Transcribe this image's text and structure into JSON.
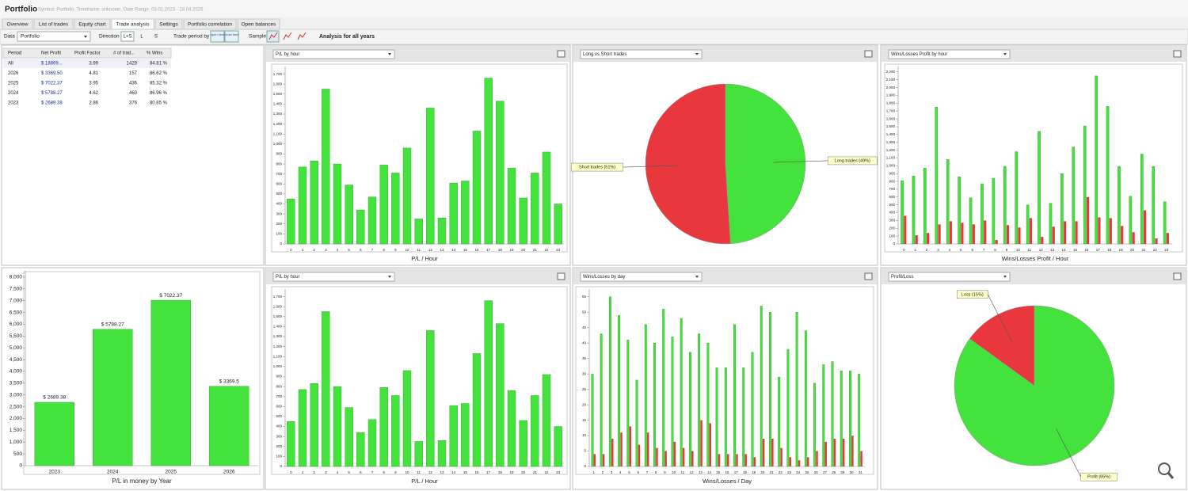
{
  "header": {
    "title": "Portfolio",
    "subtitle": "Symbol: Portfolio, Timeframe: unknown, Date Range: 03.01.2023 - 18.04.2026"
  },
  "tabs": [
    "Overview",
    "List of trades",
    "Equity chart",
    "Trade analysis",
    "Settings",
    "Portfolio correlation",
    "Open balances"
  ],
  "active_tab": 3,
  "toolbar": {
    "data_label": "Data",
    "data_value": "Portfolio",
    "direction_label": "Direction",
    "directions": [
      "L+S",
      "L",
      "S"
    ],
    "period_label": "Trade period by",
    "period_options": [
      "open time",
      "close time"
    ],
    "sample_label": "Sample",
    "analysis": "Analysis for all years"
  },
  "table": {
    "columns": [
      "Period",
      "Net Profit",
      "Profit Factor",
      "# of trad...",
      "% Wins"
    ],
    "rows": [
      [
        "All",
        "$ 18869...",
        "3.99",
        "1429",
        "84.81 %"
      ],
      [
        "2026",
        "$ 3369.50",
        "4.81",
        "157",
        "86.62 %"
      ],
      [
        "2025",
        "$ 7022.37",
        "3.95",
        "436",
        "85.32 %"
      ],
      [
        "2024",
        "$ 5788.27",
        "4.62",
        "460",
        "86.96 %"
      ],
      [
        "2023",
        "$ 2689.38",
        "2.86",
        "376",
        "80.85 %"
      ]
    ]
  },
  "chart_data": [
    {
      "type": "bar",
      "title": "P/L by hour",
      "x_label": "P/L / Hour",
      "color": "#44e23c",
      "categories": [
        "0",
        "1",
        "2",
        "3",
        "4",
        "5",
        "6",
        "7",
        "8",
        "9",
        "10",
        "11",
        "12",
        "13",
        "14",
        "15",
        "16",
        "17",
        "18",
        "19",
        "20",
        "21",
        "22",
        "23"
      ],
      "values": [
        450,
        770,
        830,
        1550,
        800,
        590,
        340,
        470,
        790,
        710,
        960,
        250,
        1360,
        260,
        610,
        630,
        1130,
        1660,
        1430,
        760,
        460,
        710,
        920,
        400
      ],
      "ylim": [
        0,
        1760
      ],
      "yticks": [
        0,
        100,
        200,
        300,
        400,
        500,
        600,
        700,
        800,
        900,
        {
          "value": 1000,
          "label": "1,000"
        },
        {
          "value": 1100,
          "label": "1,100"
        },
        {
          "value": 1200,
          "label": "1,200"
        },
        {
          "value": 1300,
          "label": "1,300"
        },
        {
          "value": 1400,
          "label": "1,400"
        },
        {
          "value": 1500,
          "label": "1,500"
        },
        {
          "value": 1600,
          "label": "1,600"
        },
        {
          "value": 1700,
          "label": "1,700"
        }
      ]
    },
    {
      "type": "pie",
      "title": "Long vs Short trades",
      "values": [
        51,
        49
      ],
      "value_labels": [
        "Short trades (51%)",
        "Long trades (49%)"
      ],
      "colors": [
        "#e8373d",
        "#44e23c"
      ]
    },
    {
      "type": "bar",
      "title": "Wins/Losses Profit by hour",
      "x_label": "Wins/Losses Profit / Hour",
      "categories": [
        "0",
        "1",
        "2",
        "3",
        "4",
        "5",
        "6",
        "7",
        "8",
        "9",
        "10",
        "11",
        "12",
        "13",
        "14",
        "15",
        "16",
        "17",
        "18",
        "19",
        "20",
        "21",
        "22",
        "23"
      ],
      "series": [
        {
          "color": "#44e23c",
          "values": [
            810,
            870,
            970,
            1750,
            1080,
            860,
            590,
            770,
            840,
            990,
            1180,
            500,
            1440,
            520,
            900,
            1240,
            1510,
            2150,
            1760,
            990,
            610,
            1150,
            990,
            540
          ]
        },
        {
          "color": "#e8373d",
          "values": [
            360,
            110,
            140,
            250,
            290,
            270,
            250,
            300,
            50,
            240,
            210,
            330,
            90,
            220,
            290,
            290,
            600,
            340,
            330,
            230,
            150,
            430,
            70,
            140
          ]
        }
      ],
      "ylim": [
        0,
        2250
      ],
      "yticks": [
        0,
        100,
        200,
        300,
        400,
        500,
        600,
        700,
        800,
        900,
        {
          "value": 1000,
          "label": "1,000"
        },
        {
          "value": 1100,
          "label": "1,100"
        },
        {
          "value": 1200,
          "label": "1,200"
        },
        {
          "value": 1300,
          "label": "1,300"
        },
        {
          "value": 1400,
          "label": "1,400"
        },
        {
          "value": 1500,
          "label": "1,500"
        },
        {
          "value": 1600,
          "label": "1,600"
        },
        {
          "value": 1700,
          "label": "1,700"
        },
        {
          "value": 1800,
          "label": "1,800"
        },
        {
          "value": 1900,
          "label": "1,900"
        },
        {
          "value": 2000,
          "label": "2,000"
        },
        {
          "value": 2100,
          "label": "2,100"
        },
        {
          "value": 2200,
          "label": "2,200"
        }
      ]
    },
    {
      "type": "bar",
      "x_label": "P/L in money by Year",
      "color": "#44e23c",
      "categories": [
        "2023",
        "2024",
        "2025",
        "2026"
      ],
      "values": [
        2689.38,
        5788.27,
        7022.37,
        3369.5
      ],
      "value_labels": [
        "$ 2689.38",
        "$ 5788.27",
        "$ 7022.37",
        "$ 3369.5"
      ],
      "ylim": [
        0,
        8200
      ],
      "yticks": [
        0,
        500,
        {
          "value": 1000,
          "label": "1,000"
        },
        {
          "value": 1500,
          "label": "1,500"
        },
        {
          "value": 2000,
          "label": "2,000"
        },
        {
          "value": 2500,
          "label": "2,500"
        },
        {
          "value": 3000,
          "label": "3,000"
        },
        {
          "value": 3500,
          "label": "3,500"
        },
        {
          "value": 4000,
          "label": "4,000"
        },
        {
          "value": 4500,
          "label": "4,500"
        },
        {
          "value": 5000,
          "label": "5,000"
        },
        {
          "value": 5500,
          "label": "5,500"
        },
        {
          "value": 6000,
          "label": "6,000"
        },
        {
          "value": 6500,
          "label": "6,500"
        },
        {
          "value": 7000,
          "label": "7,000"
        },
        {
          "value": 7500,
          "label": "7,500"
        },
        {
          "value": 8000,
          "label": "8,000"
        }
      ]
    },
    {
      "type": "bar",
      "title": "P/L by hour",
      "x_label": "P/L / Hour",
      "color": "#44e23c",
      "categories": [
        "0",
        "1",
        "2",
        "3",
        "4",
        "5",
        "6",
        "7",
        "8",
        "9",
        "10",
        "11",
        "12",
        "13",
        "14",
        "15",
        "16",
        "17",
        "18",
        "19",
        "20",
        "21",
        "22",
        "23"
      ],
      "values": [
        450,
        770,
        830,
        1550,
        800,
        590,
        340,
        470,
        790,
        710,
        960,
        250,
        1360,
        260,
        610,
        630,
        1130,
        1660,
        1430,
        760,
        460,
        710,
        920,
        400
      ],
      "ylim": [
        0,
        1760
      ],
      "yticks": [
        0,
        100,
        200,
        300,
        400,
        500,
        600,
        700,
        800,
        900,
        {
          "value": 1000,
          "label": "1,000"
        },
        {
          "value": 1100,
          "label": "1,100"
        },
        {
          "value": 1200,
          "label": "1,200"
        },
        {
          "value": 1300,
          "label": "1,300"
        },
        {
          "value": 1400,
          "label": "1,400"
        },
        {
          "value": 1500,
          "label": "1,500"
        },
        {
          "value": 1600,
          "label": "1,600"
        },
        {
          "value": 1700,
          "label": "1,700"
        }
      ]
    },
    {
      "type": "bar",
      "title": "Wins/Losses by day",
      "x_label": "Wins/Losses / Day",
      "categories": [
        "1",
        "2",
        "3",
        "4",
        "5",
        "6",
        "7",
        "8",
        "9",
        "10",
        "11",
        "12",
        "13",
        "14",
        "15",
        "16",
        "17",
        "18",
        "19",
        "20",
        "21",
        "22",
        "23",
        "24",
        "25",
        "26",
        "27",
        "28",
        "29",
        "30",
        "31"
      ],
      "series": [
        {
          "color": "#44e23c",
          "values": [
            30,
            43,
            55,
            49,
            41,
            28,
            46,
            40,
            51,
            42,
            48,
            37,
            43,
            40,
            32,
            32,
            46,
            32,
            37,
            52,
            50,
            29,
            38,
            50,
            44,
            27,
            33,
            34,
            31,
            31,
            30
          ]
        },
        {
          "color": "#e8373d",
          "values": [
            4,
            4,
            9,
            11,
            13,
            7,
            11,
            6,
            5,
            8,
            6,
            5,
            15,
            14,
            4,
            4,
            4,
            4,
            3,
            9,
            9,
            6,
            3,
            2,
            3,
            5,
            8,
            9,
            9,
            10,
            5
          ]
        }
      ],
      "ylim": [
        0,
        57
      ],
      "yticks": [
        0,
        5,
        10,
        15,
        20,
        25,
        30,
        35,
        40,
        45,
        50,
        55
      ]
    },
    {
      "type": "pie",
      "title": "Profit/Loss",
      "values": [
        15,
        85
      ],
      "value_labels": [
        "Loss (15%)",
        "Profit (85%)"
      ],
      "colors": [
        "#e8373d",
        "#44e23c"
      ]
    }
  ]
}
